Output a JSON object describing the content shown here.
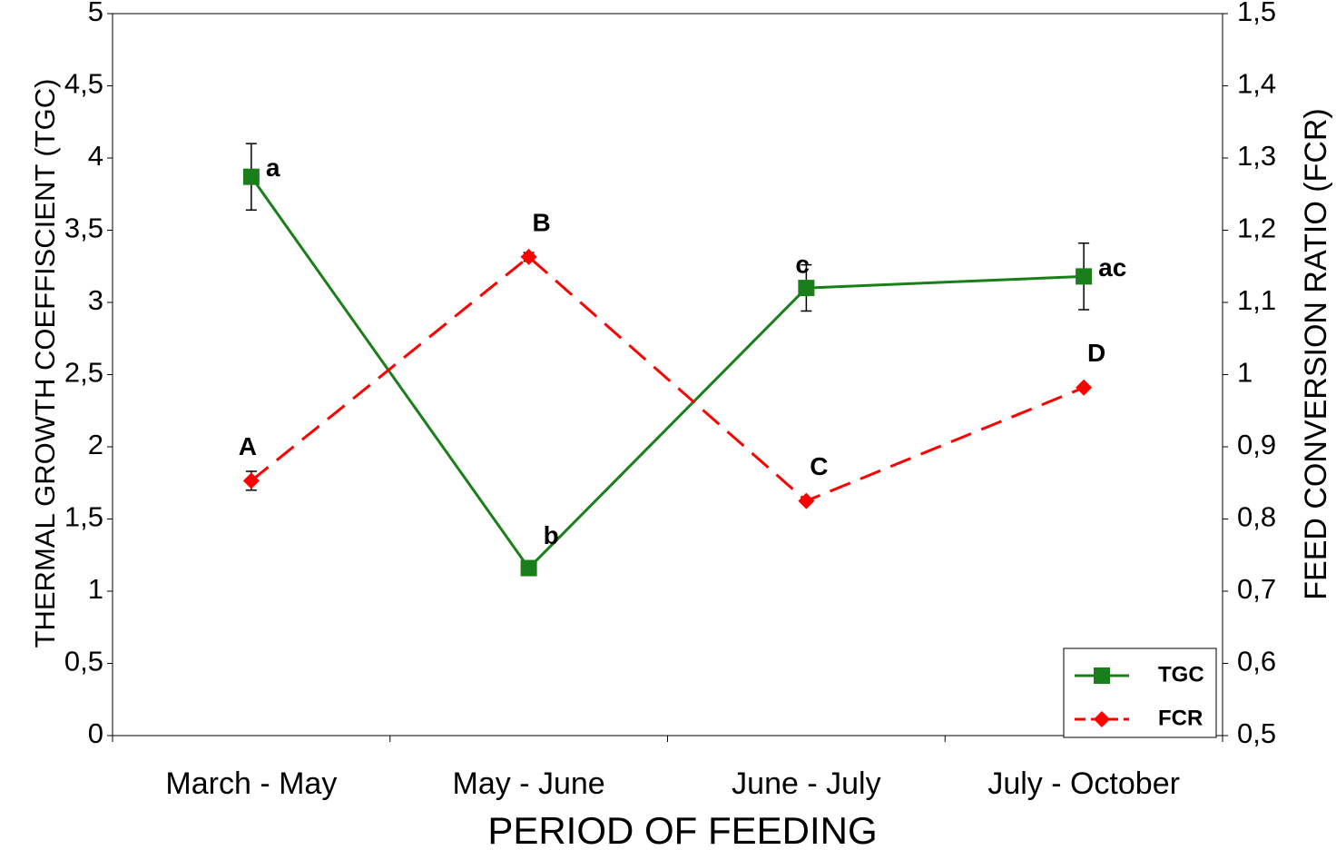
{
  "chart_data": {
    "type": "line",
    "xlabel": "PERIOD OF FEEDING",
    "ylabel": "THERMAL GROWTH COEFFISCIENT (TGC)",
    "y2label": "FEED CONVERSION RATIO (FCR)",
    "categories": [
      "March - May",
      "May - June",
      "June - July",
      "July - October"
    ],
    "ylim": [
      0,
      5
    ],
    "yticks": [
      0,
      {
        "value": 0.5,
        "label": "0,5"
      },
      1,
      {
        "value": 1.5,
        "label": "1,5"
      },
      2,
      {
        "value": 2.5,
        "label": "2,5"
      },
      3,
      {
        "value": 3.5,
        "label": "3,5"
      },
      4,
      {
        "value": 4.5,
        "label": "4,5"
      },
      5
    ],
    "y2lim": [
      0.5,
      1.5
    ],
    "y2ticks": [
      {
        "value": 0.5,
        "label": "0,5"
      },
      {
        "value": 0.6,
        "label": "0,6"
      },
      {
        "value": 0.7,
        "label": "0,7"
      },
      {
        "value": 0.8,
        "label": "0,8"
      },
      {
        "value": 0.9,
        "label": "0,9"
      },
      1,
      {
        "value": 1.1,
        "label": "1,1"
      },
      {
        "value": 1.2,
        "label": "1,2"
      },
      {
        "value": 1.3,
        "label": "1,3"
      },
      {
        "value": 1.4,
        "label": "1,4"
      },
      {
        "value": 1.5,
        "label": "1,5"
      }
    ],
    "legend": "lower right",
    "series": [
      {
        "name": "TGC",
        "color": "#1a7f1a",
        "marker": "square",
        "dashed": false,
        "values": [
          3.87,
          1.16,
          3.1,
          3.18
        ],
        "errors": [
          0.23,
          0.05,
          0.16,
          0.23
        ],
        "point_labels": [
          "a",
          "b",
          "c",
          "ac"
        ]
      },
      {
        "name": "FCR",
        "color": "#ff0000",
        "marker": "diamond",
        "dashed": true,
        "axis": "y2",
        "values": [
          0.853,
          1.163,
          0.825,
          0.982
        ],
        "errors": [
          0.013,
          0.006,
          0,
          0
        ],
        "point_labels": [
          "A",
          "B",
          "C",
          "D"
        ]
      }
    ]
  }
}
